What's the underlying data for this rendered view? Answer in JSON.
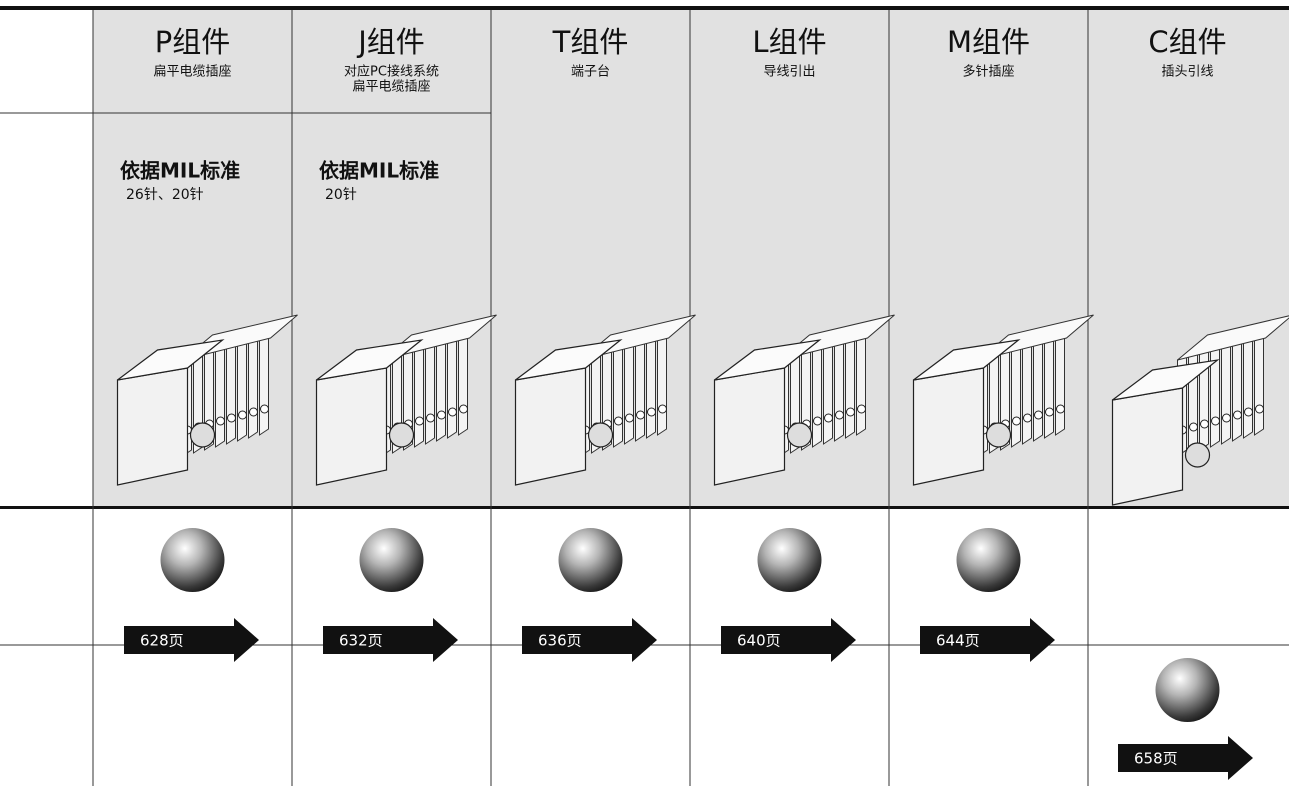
{
  "columns": [
    {
      "title": "P组件",
      "subtitle": [
        "扁平电缆插座"
      ],
      "standard": "依据MIL标准",
      "pins": "26针、20针"
    },
    {
      "title": "J组件",
      "subtitle": [
        "对应PC接线系统",
        "扁平电缆插座"
      ],
      "standard": "依据MIL标准",
      "pins": "20针"
    },
    {
      "title": "T组件",
      "subtitle": [
        "端子台"
      ]
    },
    {
      "title": "L组件",
      "subtitle": [
        "导线引出"
      ]
    },
    {
      "title": "M组件",
      "subtitle": [
        "多针插座"
      ]
    },
    {
      "title": "C组件",
      "subtitle": [
        "插头引线"
      ]
    }
  ],
  "link_rows": [
    [
      "628页",
      "632页",
      "636页",
      "640页",
      "644页",
      null
    ],
    [
      null,
      null,
      null,
      null,
      null,
      "658页"
    ]
  ]
}
